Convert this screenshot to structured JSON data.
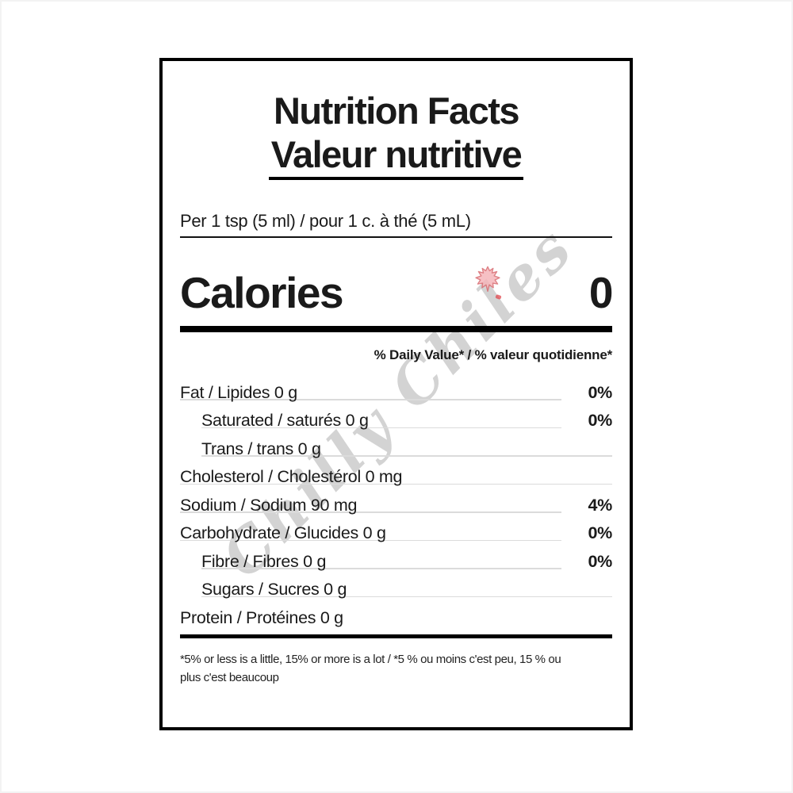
{
  "label": {
    "title_en": "Nutrition Facts",
    "title_fr": "Valeur nutritive",
    "serving_statement": "Per 1 tsp (5 ml) / pour 1 c. à thé (5 mL)",
    "calories": {
      "label": "Calories",
      "value": "0"
    },
    "daily_value_header": "% Daily Value* / % valeur quotidienne*",
    "nutrients": [
      {
        "name": "Fat / Lipides 0 g",
        "percent": "0%",
        "indent": false
      },
      {
        "name": "Saturated / saturés 0 g",
        "percent": "0%",
        "indent": true
      },
      {
        "name": "Trans / trans 0 g",
        "percent": "",
        "indent": true
      },
      {
        "name": "Cholesterol / Cholestérol 0 mg",
        "percent": "",
        "indent": false
      },
      {
        "name": "Sodium / Sodium 90 mg",
        "percent": "4%",
        "indent": false
      },
      {
        "name": "Carbohydrate / Glucides 0 g",
        "percent": "0%",
        "indent": false
      },
      {
        "name": "Fibre / Fibres 0 g",
        "percent": "0%",
        "indent": true
      },
      {
        "name": "Sugars / Sucres 0 g",
        "percent": "",
        "indent": true
      },
      {
        "name": "Protein / Protéines 0 g",
        "percent": "",
        "indent": false,
        "last": true
      }
    ],
    "footnote_line1": "*5% or less is a little, 15% or more is a lot / *5 % ou moins c'est peu, 15 % ou",
    "footnote_line2": "plus c'est beaucoup"
  },
  "watermark": {
    "text": "Chilly Chiles",
    "icon": "maple-leaf-icon",
    "text_color": "#9e9e9e",
    "leaf_fill": "#f5b6ba",
    "leaf_stroke": "#d96b70"
  },
  "colors": {
    "border": "#000000",
    "text": "#1a1a1a",
    "thin_rule": "#dbdbdb",
    "bar": "#000000",
    "background": "#ffffff"
  }
}
